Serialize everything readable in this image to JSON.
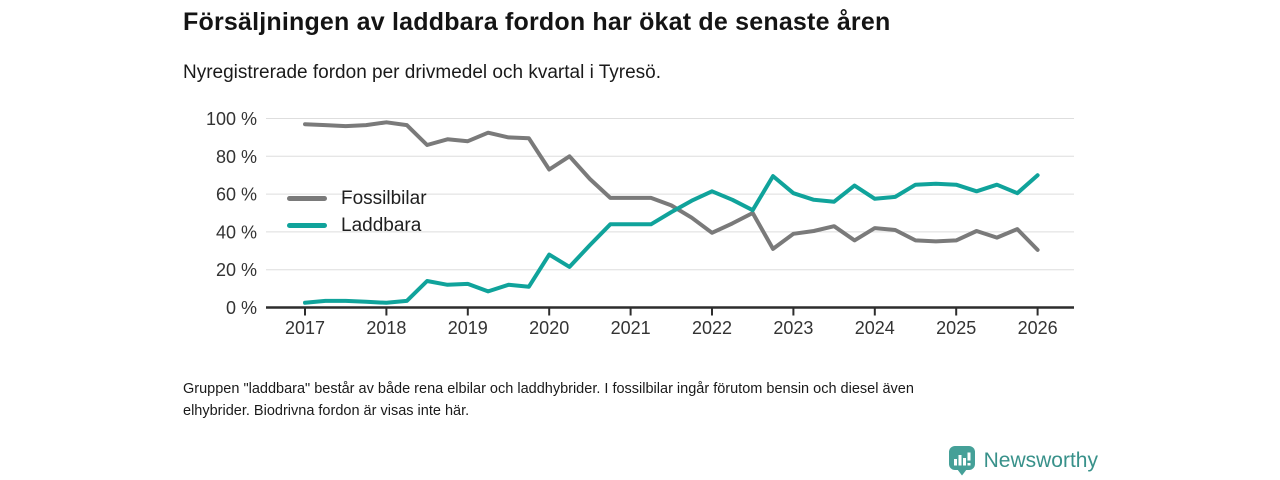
{
  "header": {
    "title": "Försäljningen av laddbara fordon har ökat de senaste åren",
    "subtitle": "Nyregistrerade fordon per drivmedel och kvartal i Tyresö."
  },
  "footer": {
    "line1": "Gruppen \"laddbara\" består av både rena elbilar och laddhybrider. I fossilbilar ingår förutom bensin och diesel även",
    "line2": "elhybrider. Biodrivna fordon är visas inte här."
  },
  "logo": {
    "text": "Newsworthy",
    "icon": "newsworthy-bar-chart-pin-icon",
    "icon_color": "#45a098",
    "text_color": "#38918a"
  },
  "chart_data": {
    "type": "line",
    "title": "Försäljningen av laddbara fordon har ökat de senaste åren",
    "subtitle": "Nyregistrerade fordon per drivmedel och kvartal i Tyresö.",
    "xlabel": "",
    "ylabel": "",
    "x_unit": "quarter",
    "x_start": "2017 Q1",
    "x_end": "2026 Q1",
    "x_tick_labels": [
      "2017",
      "2018",
      "2019",
      "2020",
      "2021",
      "2022",
      "2023",
      "2024",
      "2025",
      "2026"
    ],
    "y_ticks": [
      0,
      20,
      40,
      60,
      80,
      100
    ],
    "y_tick_suffix": " %",
    "ylim": [
      0,
      100
    ],
    "grid": "horizontal",
    "legend_position": "inside-left",
    "axis_color": "#2d2d2d",
    "grid_color": "#dedede",
    "tick_label_color": "#333333",
    "series": [
      {
        "name": "Fossilbilar",
        "color": "#7a7a7a",
        "values": [
          97,
          96.5,
          96,
          96.5,
          98,
          96.5,
          86,
          89,
          88,
          92.5,
          90,
          89.5,
          73,
          80,
          68,
          58,
          58,
          58,
          54,
          47.5,
          39.5,
          44.5,
          50,
          31,
          39,
          40.5,
          43,
          35.5,
          42,
          41,
          35.5,
          35,
          35.5,
          40.5,
          37,
          41.5,
          30.5
        ]
      },
      {
        "name": "Laddbara",
        "color": "#10a39b",
        "values": [
          2.5,
          3.5,
          3.5,
          3,
          2.5,
          3.5,
          14,
          12,
          12.5,
          8.5,
          12,
          11,
          28,
          21.5,
          33,
          44,
          44,
          44,
          50.5,
          56.5,
          61.5,
          57,
          51.5,
          69.5,
          60.5,
          57,
          56,
          64.5,
          57.5,
          58.5,
          65,
          65.5,
          65,
          61.5,
          65,
          60.5,
          70
        ]
      }
    ]
  }
}
